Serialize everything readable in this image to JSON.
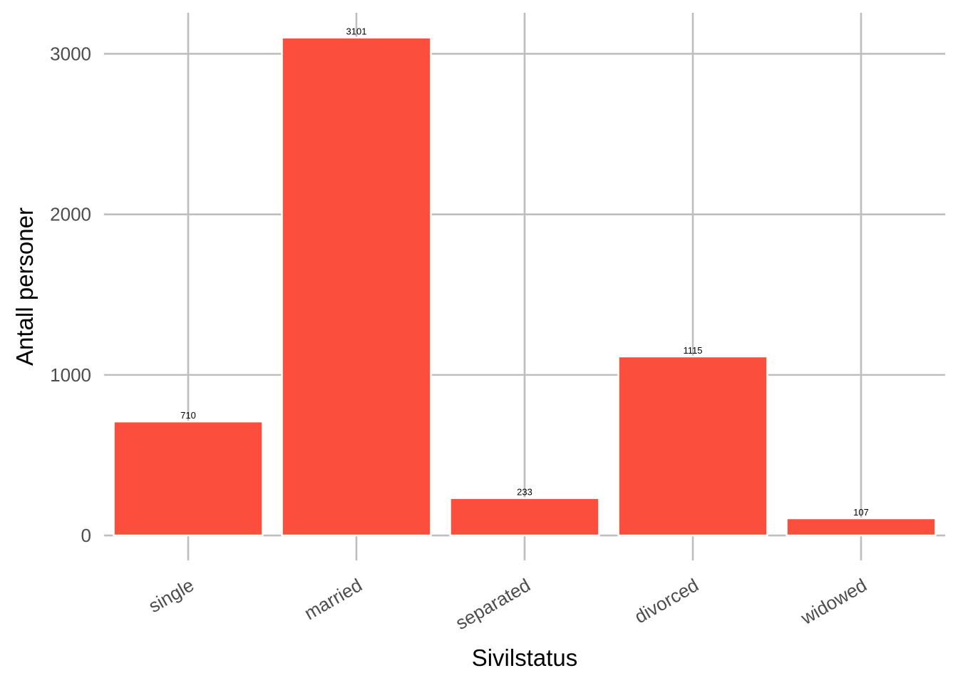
{
  "chart_data": {
    "type": "bar",
    "categories": [
      "single",
      "married",
      "separated",
      "divorced",
      "widowed"
    ],
    "values": [
      710,
      3101,
      233,
      1115,
      107
    ],
    "data_labels": [
      "710",
      "3101",
      "233",
      "1115",
      "107"
    ],
    "xlabel": "Sivilstatus",
    "ylabel": "Antall personer",
    "yticks": [
      0,
      1000,
      2000,
      3000
    ],
    "ytick_labels": [
      "0",
      "1000",
      "2000",
      "3000"
    ],
    "ylim": [
      -155,
      3255
    ],
    "grid": true,
    "legend": "none",
    "x_tick_label_rotation": "angled",
    "colors": {
      "bar": "#fc4e3c",
      "grid": "#bebebe",
      "tick_text": "#4d4d4d",
      "title_text": "#000000",
      "background": "#ffffff"
    }
  }
}
